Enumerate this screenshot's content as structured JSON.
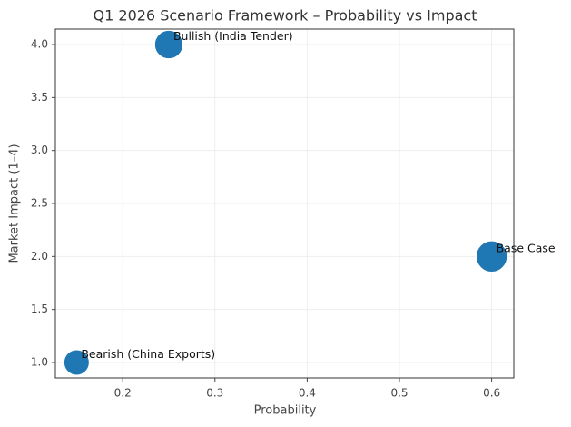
{
  "chart_data": {
    "type": "scatter",
    "title": "Q1 2026 Scenario Framework – Probability vs Impact",
    "xlabel": "Probability",
    "ylabel": "Market Impact (1–4)",
    "xlim": [
      0.127,
      0.624
    ],
    "ylim": [
      0.854,
      4.146
    ],
    "xticks": [
      0.2,
      0.3,
      0.4,
      0.5,
      0.6
    ],
    "yticks": [
      {
        "value": 1,
        "label": "1.0"
      },
      {
        "value": 1.5,
        "label": "1.5"
      },
      {
        "value": 2,
        "label": "2.0"
      },
      {
        "value": 2.5,
        "label": "2.5"
      },
      {
        "value": 3,
        "label": "3.0"
      },
      {
        "value": 3.5,
        "label": "3.5"
      },
      {
        "value": 4,
        "label": "4.0"
      }
    ],
    "grid": true,
    "series": [
      {
        "color": "#1f77b4",
        "labels": [
          "Bullish (India Tender)",
          "Base Case",
          "Bearish (China Exports)"
        ],
        "x": [
          0.25,
          0.6,
          0.15
        ],
        "values": [
          4.0,
          2.0,
          1.0
        ],
        "sizes": [
          500,
          600,
          400
        ]
      }
    ]
  }
}
